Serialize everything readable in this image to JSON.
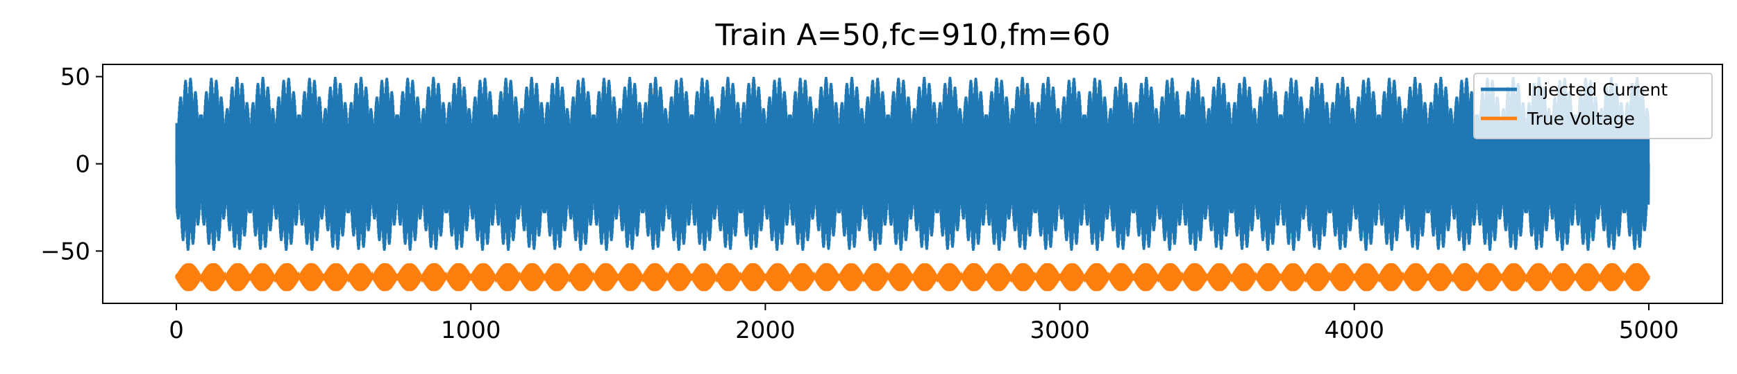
{
  "chart_data": {
    "type": "line",
    "title": "Train A=50,fc=910,fm=60",
    "xlabel": "",
    "ylabel": "",
    "xlim": [
      -250,
      5250
    ],
    "ylim": [
      -80,
      57
    ],
    "grid": false,
    "legend_placement": "top-right",
    "x_ticks": [
      0,
      1000,
      2000,
      3000,
      4000,
      5000
    ],
    "x_tick_labels": [
      "0",
      "1000",
      "2000",
      "3000",
      "4000",
      "5000"
    ],
    "y_ticks": [
      50,
      0,
      -50
    ],
    "y_tick_labels": [
      "50",
      "0",
      "−50"
    ],
    "x_range": [
      0,
      5000
    ],
    "series": [
      {
        "name": "Injected Current",
        "color": "#1f77b4",
        "description_values": {
          "center": 0,
          "amplitude": 50,
          "carrier_freq": 910,
          "modulation_freq": 60
        }
      },
      {
        "name": "True Voltage",
        "color": "#ff7f0e",
        "description_values": {
          "center": -65,
          "amplitude": 8,
          "lobes": 60
        }
      }
    ]
  }
}
